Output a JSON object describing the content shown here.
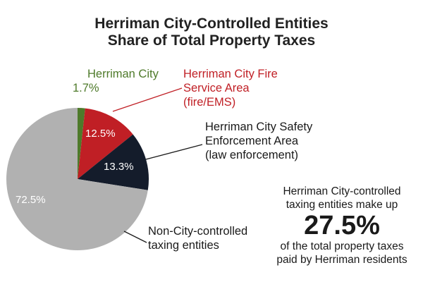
{
  "chart_data": {
    "type": "pie",
    "title": [
      "Herriman City-Controlled Entities",
      "Share of Total Property Taxes"
    ],
    "slices": [
      {
        "label": [
          "Herriman City"
        ],
        "value": 1.7,
        "value_label": "1.7%",
        "color": "#4e7a2a"
      },
      {
        "label": [
          "Herriman City Fire",
          "Service Area",
          "(fire/EMS)"
        ],
        "value": 12.5,
        "value_label": "12.5%",
        "color": "#c01f25"
      },
      {
        "label": [
          "Herriman City Safety",
          "Enforcement Area",
          "(law enforcement)"
        ],
        "value": 13.3,
        "value_label": "13.3%",
        "color": "#141c2b"
      },
      {
        "label": [
          "Non-City-controlled",
          "taxing entities"
        ],
        "value": 72.5,
        "value_label": "72.5%",
        "color": "#b1b1b1"
      }
    ],
    "start_angle_deg": 0,
    "direction": "clockwise"
  },
  "callout": {
    "line1": "Herriman City-controlled",
    "line2": "taxing entities make up",
    "value": "27.5%",
    "line3": "of the total property taxes",
    "line4": "paid by Herriman residents"
  },
  "colors": {
    "label_green": "#4e7a2a",
    "label_red": "#c01f25",
    "label_dark": "#1a1a1a"
  }
}
